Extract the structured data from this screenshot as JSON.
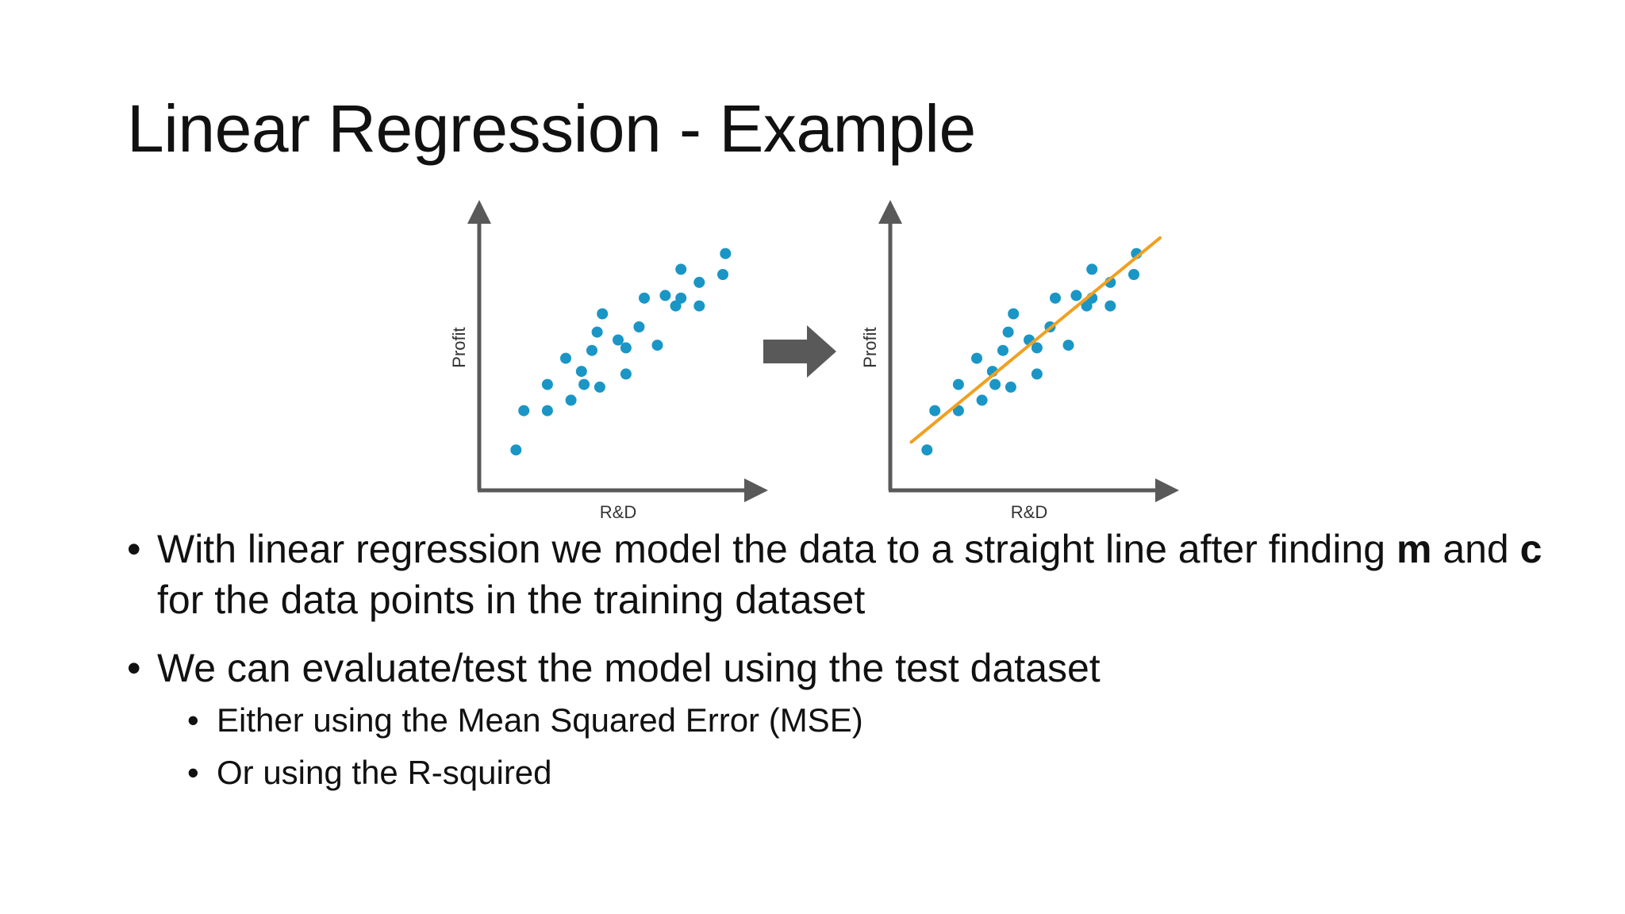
{
  "slide": {
    "title": "Linear Regression - Example"
  },
  "bullets": {
    "b1_part1": "With linear regression we model the data to a straight line after finding ",
    "b1_m": "m",
    "b1_and": " and ",
    "b1_c": "c",
    "b1_part2": " for the data points in the training dataset",
    "b2": "We can evaluate/test the model using the test dataset",
    "b2_sub1": "Either using the Mean Squared Error (MSE)",
    "b2_sub2": "Or using the R-squired",
    "bullet_char": "•"
  },
  "colors": {
    "points": "#1a96c6",
    "axis": "#595959",
    "arrow": "#595959",
    "fit_line": "#f0a020"
  },
  "chart_data": [
    {
      "type": "scatter",
      "xlabel": "R&D",
      "ylabel": "Profit",
      "xlim": [
        0,
        100
      ],
      "ylim": [
        0,
        100
      ],
      "points": [
        [
          11,
          13
        ],
        [
          14,
          28
        ],
        [
          23,
          28
        ],
        [
          23,
          38
        ],
        [
          30,
          48
        ],
        [
          32,
          32
        ],
        [
          36,
          43
        ],
        [
          37,
          38
        ],
        [
          40,
          51
        ],
        [
          42,
          58
        ],
        [
          43,
          37
        ],
        [
          44,
          65
        ],
        [
          50,
          55
        ],
        [
          53,
          42
        ],
        [
          53,
          52
        ],
        [
          58,
          60
        ],
        [
          60,
          71
        ],
        [
          65,
          53
        ],
        [
          68,
          72
        ],
        [
          72,
          68
        ],
        [
          74,
          71
        ],
        [
          74,
          82
        ],
        [
          81,
          77
        ],
        [
          81,
          68
        ],
        [
          90,
          80
        ],
        [
          91,
          88
        ]
      ]
    },
    {
      "type": "scatter",
      "xlabel": "R&D",
      "ylabel": "Profit",
      "xlim": [
        0,
        100
      ],
      "ylim": [
        0,
        100
      ],
      "points": [
        [
          11,
          13
        ],
        [
          14,
          28
        ],
        [
          23,
          28
        ],
        [
          23,
          38
        ],
        [
          30,
          48
        ],
        [
          32,
          32
        ],
        [
          36,
          43
        ],
        [
          37,
          38
        ],
        [
          40,
          51
        ],
        [
          42,
          58
        ],
        [
          43,
          37
        ],
        [
          44,
          65
        ],
        [
          50,
          55
        ],
        [
          53,
          42
        ],
        [
          53,
          52
        ],
        [
          58,
          60
        ],
        [
          60,
          71
        ],
        [
          65,
          53
        ],
        [
          68,
          72
        ],
        [
          72,
          68
        ],
        [
          74,
          71
        ],
        [
          74,
          82
        ],
        [
          81,
          77
        ],
        [
          81,
          68
        ],
        [
          90,
          80
        ],
        [
          91,
          88
        ]
      ],
      "fit_line": [
        [
          5,
          16
        ],
        [
          100,
          94
        ]
      ]
    }
  ]
}
